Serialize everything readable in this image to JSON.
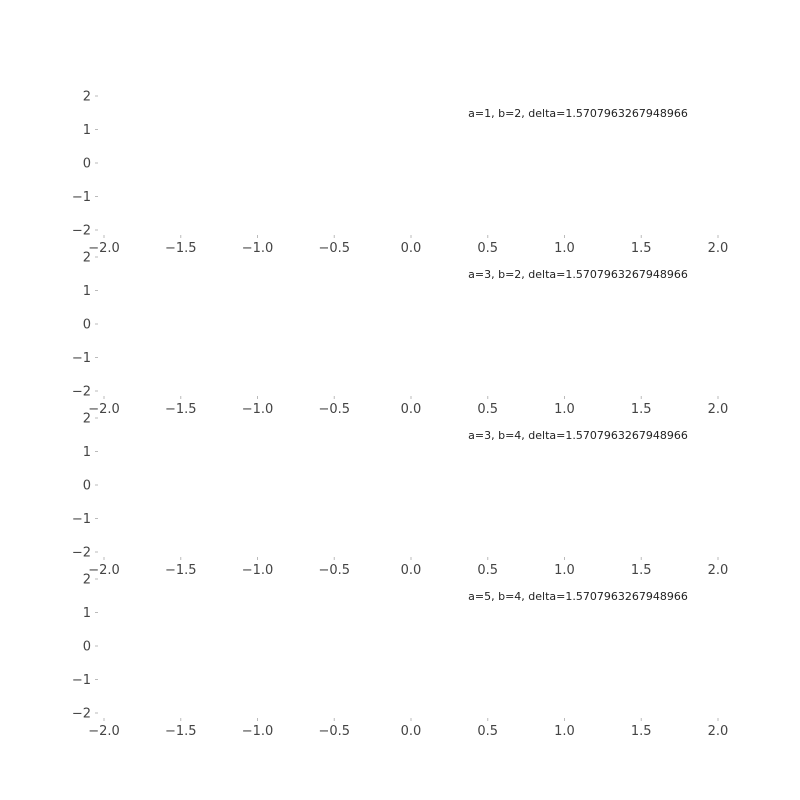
{
  "chart_data": [
    {
      "type": "line",
      "title": "a=1, b=2, delta=1.5707963267948966",
      "xlim": [
        -2.0,
        2.0
      ],
      "ylim": [
        -2,
        2
      ],
      "xticks": [
        "−2.0",
        "−1.5",
        "−1.0",
        "−0.5",
        "0.0",
        "0.5",
        "1.0",
        "1.5",
        "2.0"
      ],
      "yticks": [
        "−2",
        "−1",
        "0",
        "1",
        "2"
      ],
      "series": [],
      "grid": false
    },
    {
      "type": "line",
      "title": "a=3, b=2, delta=1.5707963267948966",
      "xlim": [
        -2.0,
        2.0
      ],
      "ylim": [
        -2,
        2
      ],
      "xticks": [
        "−2.0",
        "−1.5",
        "−1.0",
        "−0.5",
        "0.0",
        "0.5",
        "1.0",
        "1.5",
        "2.0"
      ],
      "yticks": [
        "−2",
        "−1",
        "0",
        "1",
        "2"
      ],
      "series": [],
      "grid": false
    },
    {
      "type": "line",
      "title": "a=3, b=4, delta=1.5707963267948966",
      "xlim": [
        -2.0,
        2.0
      ],
      "ylim": [
        -2,
        2
      ],
      "xticks": [
        "−2.0",
        "−1.5",
        "−1.0",
        "−0.5",
        "0.0",
        "0.5",
        "1.0",
        "1.5",
        "2.0"
      ],
      "yticks": [
        "−2",
        "−1",
        "0",
        "1",
        "2"
      ],
      "series": [],
      "grid": false
    },
    {
      "type": "line",
      "title": "a=5, b=4, delta=1.5707963267948966",
      "xlim": [
        -2.0,
        2.0
      ],
      "ylim": [
        -2,
        2
      ],
      "xticks": [
        "−2.0",
        "−1.5",
        "−1.0",
        "−0.5",
        "0.0",
        "0.5",
        "1.0",
        "1.5",
        "2.0"
      ],
      "yticks": [
        "−2",
        "−1",
        "0",
        "1",
        "2"
      ],
      "series": [],
      "grid": false
    }
  ]
}
